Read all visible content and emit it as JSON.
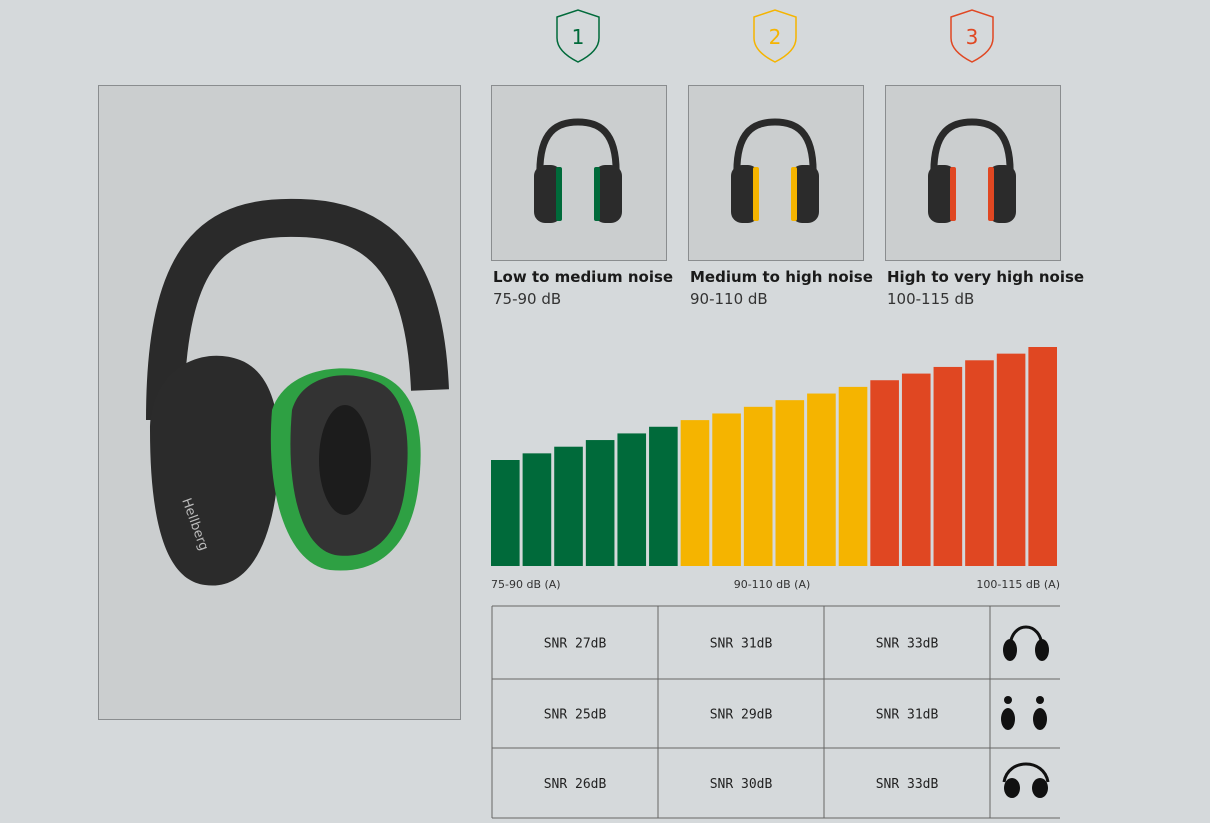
{
  "levels": [
    {
      "badge": "1",
      "title": "Low to medium noise",
      "range": "75-90 dB",
      "color": "#006a3a"
    },
    {
      "badge": "2",
      "title": "Medium to high noise",
      "range": "90-110 dB",
      "color": "#f5b400"
    },
    {
      "badge": "3",
      "title": "High to very high noise",
      "range": "100-115 dB",
      "color": "#e04722"
    }
  ],
  "scale_labels": [
    "75-90 dB (A)",
    "90-110 dB (A)",
    "100-115 dB (A)"
  ],
  "table": {
    "rows": [
      [
        "SNR 27dB",
        "SNR 31dB",
        "SNR 33dB"
      ],
      [
        "SNR 25dB",
        "SNR 29dB",
        "SNR 31dB"
      ],
      [
        "SNR 26dB",
        "SNR 30dB",
        "SNR 33dB"
      ]
    ]
  }
}
